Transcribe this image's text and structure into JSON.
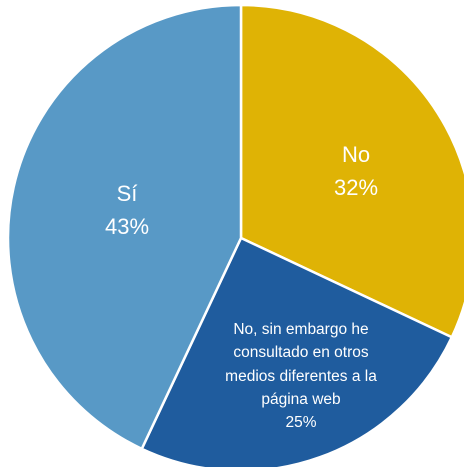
{
  "chart_data": {
    "type": "pie",
    "categories": [
      "No",
      "No, sin embargo he consultado en otros medios diferentes a la página web",
      "Sí"
    ],
    "values": [
      32,
      25,
      43
    ],
    "value_labels": [
      "32%",
      "25%",
      "43%"
    ],
    "colors": [
      "#dfb305",
      "#1f5c9e",
      "#5899c6"
    ]
  }
}
